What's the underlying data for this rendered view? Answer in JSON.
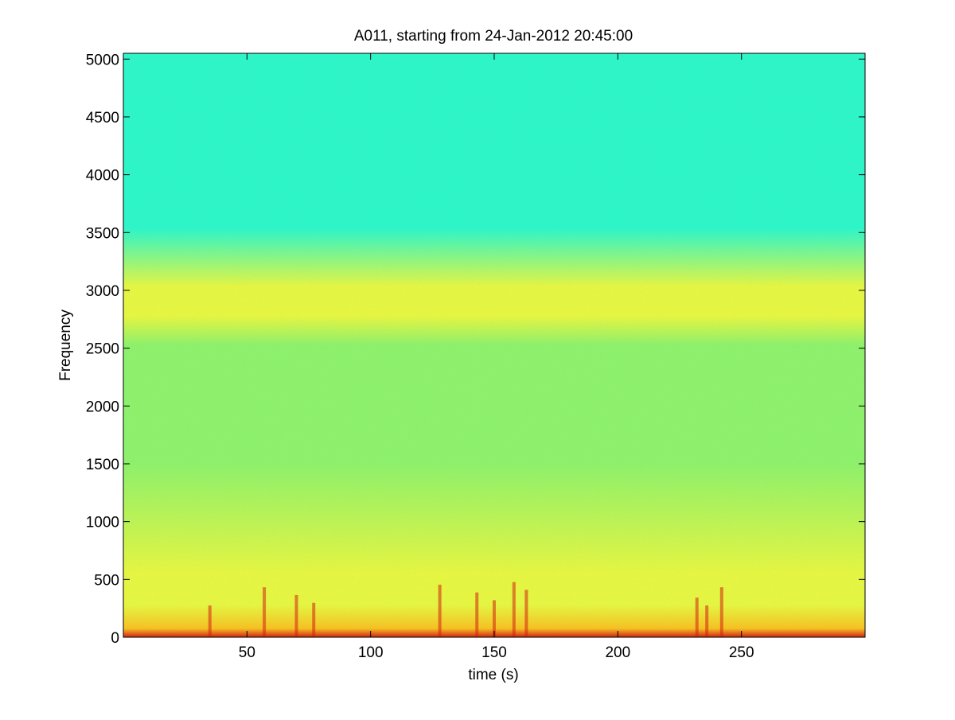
{
  "chart_data": {
    "type": "heatmap",
    "title": "A011, starting from 24-Jan-2012 20:45:00",
    "xlabel": "time (s)",
    "ylabel": "Frequency",
    "xlim": [
      0,
      300
    ],
    "ylim": [
      0,
      5050
    ],
    "xticks": [
      50,
      100,
      150,
      200,
      250
    ],
    "xtick_labels": [
      "50",
      "100",
      "150",
      "200",
      "250"
    ],
    "yticks": [
      0,
      500,
      1000,
      1500,
      2000,
      2500,
      3000,
      3500,
      4000,
      4500,
      5000
    ],
    "ytick_labels": [
      "0",
      "500",
      "1000",
      "1500",
      "2000",
      "2500",
      "3000",
      "3500",
      "4000",
      "4500",
      "5000"
    ],
    "colormap": "jet",
    "colors": {
      "background": "#ffffff",
      "axis": "#000000",
      "high_freq_cyan": "#2ef5c7",
      "mid_green": "#8ef06a",
      "band_yellow": "#e6f540",
      "low_orange": "#f7c020",
      "low_red": "#d42010"
    },
    "grid": false,
    "features": {
      "high_energy_band_hz": [
        0,
        500
      ],
      "secondary_band_hz": [
        2600,
        3100
      ],
      "energy_bursts_time_s": [
        35,
        57,
        70,
        77,
        128,
        143,
        150,
        158,
        163,
        232,
        236,
        242
      ]
    }
  }
}
